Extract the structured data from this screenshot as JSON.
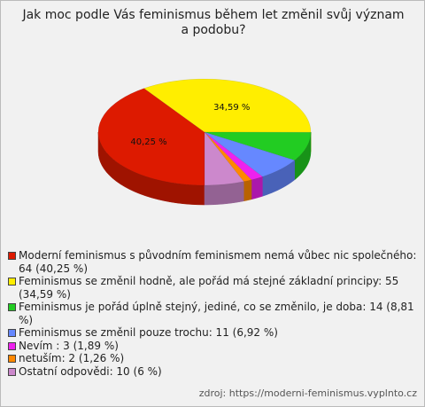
{
  "chart_data": {
    "type": "pie",
    "title": "Jak moc podle Vás feminismus během let změnil svůj význam a podobu?",
    "categories": [
      "Moderní feminismus s původním feminismem nemá vůbec nic společného: 64 (40,25 %)",
      "Feminismus se změnil hodně, ale pořád má stejné základní principy: 55 (34,59 %)",
      "Feminismus je pořád úplně stejný, jediné, co se změnilo, je doba: 14 (8,81 %)",
      "Feminismus se změnil pouze trochu: 11 (6,92 %)",
      "Nevím : 3 (1,89 %)",
      "netuším: 2 (1,26 %)",
      "Ostatní odpovědi: 10 (6 %)"
    ],
    "values": [
      40.25,
      34.59,
      8.81,
      6.92,
      1.89,
      1.26,
      6
    ],
    "value_labels": [
      "40,25 %",
      "34,59 %",
      null,
      null,
      null,
      null,
      null
    ],
    "colors": [
      "#dd1a00",
      "#ffee00",
      "#22cc22",
      "#6688ff",
      "#ee22ee",
      "#ff8800",
      "#cc88cc"
    ],
    "source": "zdroj: https://moderni-feminismus.vyplnto.cz"
  }
}
